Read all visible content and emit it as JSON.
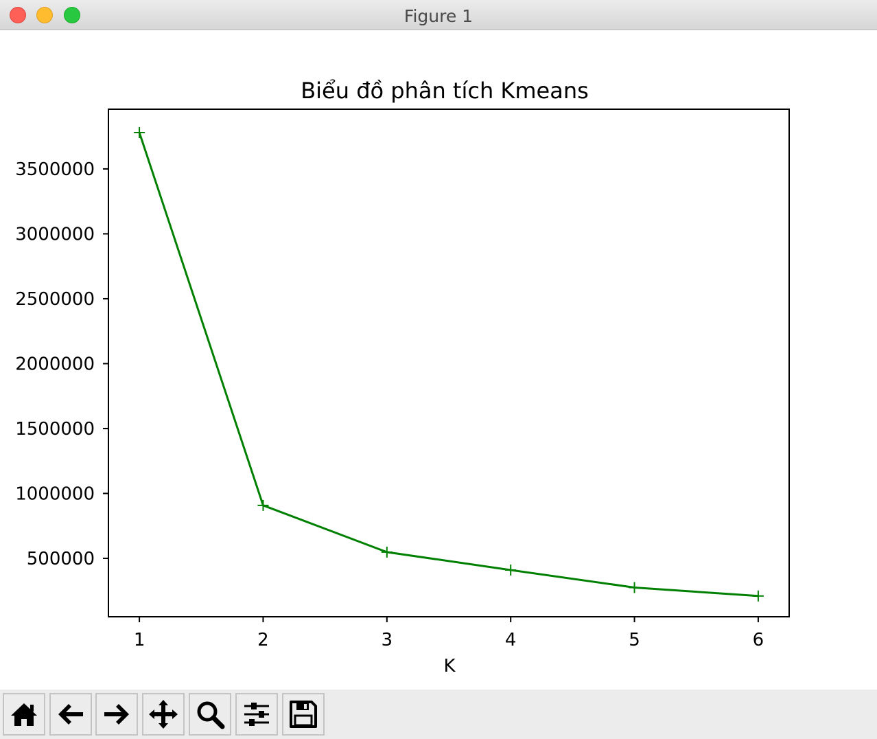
{
  "window": {
    "title": "Figure 1"
  },
  "toolbar": {
    "buttons": [
      {
        "name": "home-button",
        "icon": "home-icon"
      },
      {
        "name": "back-button",
        "icon": "arrow-left-icon"
      },
      {
        "name": "forward-button",
        "icon": "arrow-right-icon"
      },
      {
        "name": "pan-button",
        "icon": "move-icon"
      },
      {
        "name": "zoom-button",
        "icon": "magnifier-icon"
      },
      {
        "name": "configure-subplots-button",
        "icon": "sliders-icon"
      },
      {
        "name": "save-button",
        "icon": "floppy-disk-icon"
      }
    ]
  },
  "chart_data": {
    "type": "line",
    "title": "Biểu đồ phân tích Kmeans",
    "xlabel": "K",
    "ylabel": "",
    "x": [
      1,
      2,
      3,
      4,
      5,
      6
    ],
    "series": [
      {
        "values": [
          3780000,
          908000,
          548000,
          410000,
          275000,
          210000
        ],
        "color": "#008000",
        "marker": "+"
      }
    ],
    "xticks": [
      "1",
      "2",
      "3",
      "4",
      "5",
      "6"
    ],
    "yticks": [
      500000,
      1000000,
      1500000,
      2000000,
      2500000,
      3000000,
      3500000
    ],
    "ytick_labels": [
      "500000",
      "1000000",
      "1500000",
      "2000000",
      "2500000",
      "3000000",
      "3500000"
    ],
    "xlim": [
      0.75,
      6.25
    ],
    "ylim": [
      50000,
      3960000
    ],
    "grid": false
  }
}
